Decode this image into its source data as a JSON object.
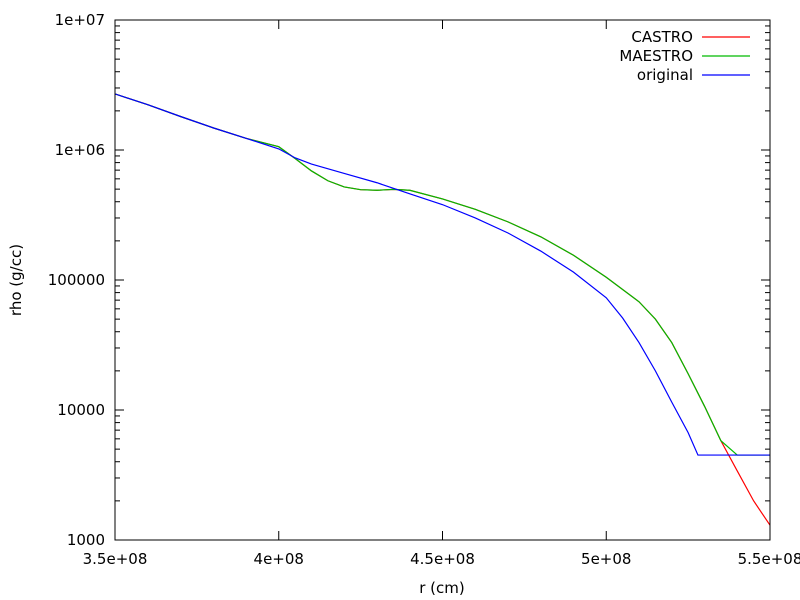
{
  "chart_data": {
    "type": "line",
    "xlabel": "r (cm)",
    "ylabel": "rho (g/cc)",
    "x_scale": "linear",
    "y_scale": "log",
    "xlim": [
      350000000,
      550000000
    ],
    "ylim": [
      1000,
      10000000
    ],
    "grid": false,
    "legend_position": "top-right",
    "x_ticks": [
      {
        "value": 350000000,
        "label": "3.5e+08"
      },
      {
        "value": 400000000,
        "label": "4e+08"
      },
      {
        "value": 450000000,
        "label": "4.5e+08"
      },
      {
        "value": 500000000,
        "label": "5e+08"
      },
      {
        "value": 550000000,
        "label": "5.5e+08"
      }
    ],
    "y_ticks": [
      {
        "value": 1000,
        "label": "1000"
      },
      {
        "value": 10000,
        "label": "10000"
      },
      {
        "value": 100000,
        "label": "100000"
      },
      {
        "value": 1000000,
        "label": "1e+06"
      },
      {
        "value": 10000000,
        "label": "1e+07"
      }
    ],
    "series": [
      {
        "name": "CASTRO",
        "color": "#ff0000",
        "points": [
          [
            350000000,
            2700000
          ],
          [
            360000000,
            2230000
          ],
          [
            370000000,
            1810000
          ],
          [
            380000000,
            1480000
          ],
          [
            390000000,
            1230000
          ],
          [
            400000000,
            1060000
          ],
          [
            405000000,
            860000
          ],
          [
            410000000,
            690000
          ],
          [
            415000000,
            580000
          ],
          [
            420000000,
            520000
          ],
          [
            425000000,
            495000
          ],
          [
            430000000,
            490000
          ],
          [
            435000000,
            498000
          ],
          [
            440000000,
            490000
          ],
          [
            450000000,
            420000
          ],
          [
            460000000,
            350000
          ],
          [
            470000000,
            280000
          ],
          [
            480000000,
            215000
          ],
          [
            490000000,
            155000
          ],
          [
            500000000,
            105000
          ],
          [
            510000000,
            68000
          ],
          [
            515000000,
            50000
          ],
          [
            520000000,
            33000
          ],
          [
            525000000,
            19000
          ],
          [
            530000000,
            10700
          ],
          [
            535000000,
            5800
          ],
          [
            540000000,
            3400
          ],
          [
            545000000,
            2000
          ],
          [
            550000000,
            1300
          ]
        ]
      },
      {
        "name": "MAESTRO",
        "color": "#00bb00",
        "points": [
          [
            350000000,
            2700000
          ],
          [
            360000000,
            2230000
          ],
          [
            370000000,
            1810000
          ],
          [
            380000000,
            1480000
          ],
          [
            390000000,
            1230000
          ],
          [
            400000000,
            1060000
          ],
          [
            405000000,
            860000
          ],
          [
            410000000,
            690000
          ],
          [
            415000000,
            580000
          ],
          [
            420000000,
            520000
          ],
          [
            425000000,
            495000
          ],
          [
            430000000,
            490000
          ],
          [
            435000000,
            498000
          ],
          [
            440000000,
            490000
          ],
          [
            450000000,
            420000
          ],
          [
            460000000,
            350000
          ],
          [
            470000000,
            280000
          ],
          [
            480000000,
            215000
          ],
          [
            490000000,
            155000
          ],
          [
            500000000,
            105000
          ],
          [
            510000000,
            68000
          ],
          [
            515000000,
            50000
          ],
          [
            520000000,
            33000
          ],
          [
            525000000,
            19000
          ],
          [
            530000000,
            10700
          ],
          [
            535000000,
            5800
          ],
          [
            540000000,
            4500
          ],
          [
            550000000,
            4500
          ]
        ]
      },
      {
        "name": "original",
        "color": "#0000ff",
        "points": [
          [
            350000000,
            2700000
          ],
          [
            360000000,
            2230000
          ],
          [
            370000000,
            1810000
          ],
          [
            380000000,
            1480000
          ],
          [
            390000000,
            1230000
          ],
          [
            400000000,
            1020000
          ],
          [
            405000000,
            870000
          ],
          [
            410000000,
            780000
          ],
          [
            420000000,
            660000
          ],
          [
            430000000,
            560000
          ],
          [
            440000000,
            460000
          ],
          [
            450000000,
            380000
          ],
          [
            460000000,
            300000
          ],
          [
            470000000,
            230000
          ],
          [
            480000000,
            167000
          ],
          [
            490000000,
            115000
          ],
          [
            500000000,
            73000
          ],
          [
            505000000,
            51000
          ],
          [
            510000000,
            33000
          ],
          [
            515000000,
            20000
          ],
          [
            520000000,
            11500
          ],
          [
            525000000,
            6700
          ],
          [
            528000000,
            4500
          ],
          [
            550000000,
            4500
          ]
        ]
      }
    ]
  }
}
